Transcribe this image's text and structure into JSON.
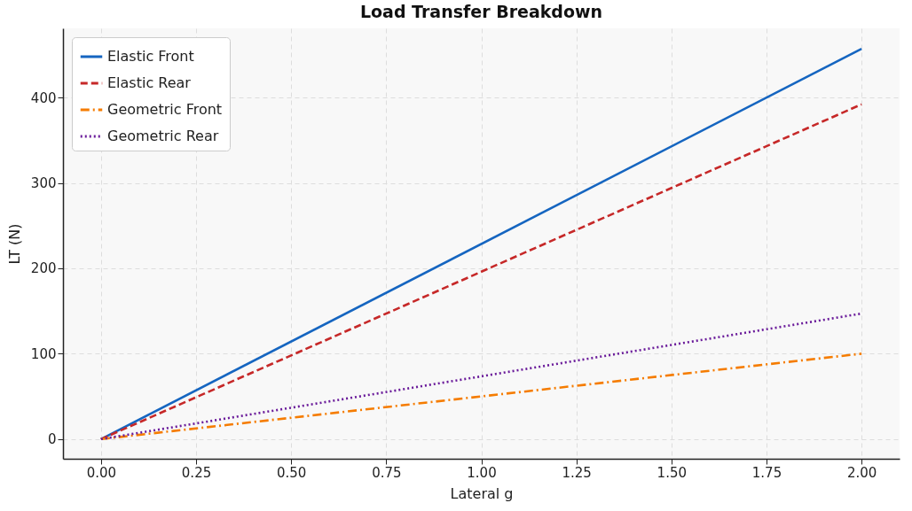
{
  "chart_data": {
    "type": "line",
    "title": "Load Transfer Breakdown",
    "xlabel": "Lateral g",
    "ylabel": "LT (N)",
    "x": [
      0,
      2
    ],
    "series": [
      {
        "name": "Elastic Front",
        "color": "#1565c0",
        "values": [
          0,
          457
        ],
        "line_style": "solid"
      },
      {
        "name": "Elastic Rear",
        "color": "#c62828",
        "values": [
          0,
          392
        ],
        "line_style": "dashed"
      },
      {
        "name": "Geometric Front",
        "color": "#f57c00",
        "values": [
          0,
          100
        ],
        "line_style": "dashdot"
      },
      {
        "name": "Geometric Rear",
        "color": "#6a1b9a",
        "values": [
          0,
          147
        ],
        "line_style": "dotted"
      }
    ],
    "xlim": [
      -0.1,
      2.1
    ],
    "ylim": [
      -23,
      481
    ],
    "xticks": [
      {
        "value": 0,
        "label": "0.00"
      },
      {
        "value": 0.25,
        "label": "0.25"
      },
      {
        "value": 0.5,
        "label": "0.50"
      },
      {
        "value": 0.75,
        "label": "0.75"
      },
      {
        "value": 1,
        "label": "1.00"
      },
      {
        "value": 1.25,
        "label": "1.25"
      },
      {
        "value": 1.5,
        "label": "1.50"
      },
      {
        "value": 1.75,
        "label": "1.75"
      },
      {
        "value": 2,
        "label": "2.00"
      }
    ],
    "yticks": [
      0,
      100,
      200,
      300,
      400
    ],
    "grid": true,
    "legend": "top left",
    "marker": "none"
  }
}
